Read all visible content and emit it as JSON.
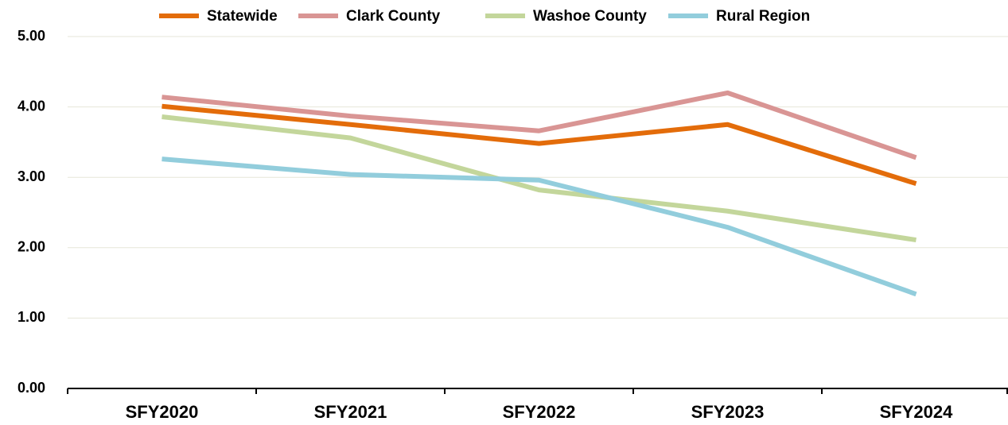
{
  "chart_data": {
    "type": "line",
    "categories": [
      "SFY2020",
      "SFY2021",
      "SFY2022",
      "SFY2023",
      "SFY2024"
    ],
    "series": [
      {
        "name": "Statewide",
        "color": "#e36c0a",
        "values": [
          4.01,
          3.75,
          3.48,
          3.75,
          2.91
        ]
      },
      {
        "name": "Clark County",
        "color": "#d99594",
        "values": [
          4.14,
          3.87,
          3.66,
          4.2,
          3.28
        ]
      },
      {
        "name": "Washoe County",
        "color": "#c3d69b",
        "values": [
          3.86,
          3.56,
          2.82,
          2.52,
          2.11
        ]
      },
      {
        "name": "Rural Region",
        "color": "#92cddc",
        "values": [
          3.26,
          3.04,
          2.96,
          2.29,
          1.34
        ]
      }
    ],
    "ylim": [
      0,
      5
    ],
    "yticks": [
      {
        "value": 0,
        "label": "0.00"
      },
      {
        "value": 1,
        "label": "1.00"
      },
      {
        "value": 2,
        "label": "2.00"
      },
      {
        "value": 3,
        "label": "3.00"
      },
      {
        "value": 4,
        "label": "4.00"
      },
      {
        "value": 5,
        "label": "5.00"
      }
    ],
    "grid": true,
    "legend": "top"
  }
}
